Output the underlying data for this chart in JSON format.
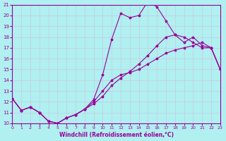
{
  "xlabel": "Windchill (Refroidissement éolien,°C)",
  "bg_color": "#b0f0f0",
  "grid_color": "#c8c8e0",
  "line_color": "#990099",
  "xlim": [
    0,
    23
  ],
  "ylim": [
    10,
    21
  ],
  "xticks": [
    0,
    1,
    2,
    3,
    4,
    5,
    6,
    7,
    8,
    9,
    10,
    11,
    12,
    13,
    14,
    15,
    16,
    17,
    18,
    19,
    20,
    21,
    22,
    23
  ],
  "yticks": [
    10,
    11,
    12,
    13,
    14,
    15,
    16,
    17,
    18,
    19,
    20,
    21
  ],
  "series1_x": [
    0,
    1,
    2,
    3,
    4,
    5,
    6,
    7,
    8,
    9,
    10,
    11,
    12,
    13,
    14,
    15,
    16,
    17,
    18,
    19,
    20,
    21,
    22,
    23
  ],
  "series1_y": [
    12.3,
    11.2,
    11.5,
    11.0,
    10.2,
    10.0,
    10.5,
    10.8,
    11.3,
    12.0,
    13.0,
    14.0,
    14.5,
    14.7,
    15.0,
    15.5,
    16.0,
    16.5,
    16.8,
    17.0,
    17.2,
    17.5,
    17.0,
    15.0
  ],
  "series2_x": [
    0,
    1,
    2,
    3,
    4,
    5,
    6,
    7,
    8,
    9,
    10,
    11,
    12,
    13,
    14,
    15,
    16,
    17,
    18,
    19,
    20,
    21,
    22,
    23
  ],
  "series2_y": [
    12.3,
    11.2,
    11.5,
    11.0,
    10.2,
    10.0,
    10.5,
    10.8,
    11.3,
    11.8,
    12.5,
    13.5,
    14.2,
    14.8,
    15.5,
    16.3,
    17.2,
    18.0,
    18.2,
    18.0,
    17.5,
    17.0,
    17.0,
    15.0
  ],
  "series3_x": [
    0,
    1,
    2,
    3,
    4,
    5,
    6,
    7,
    8,
    9,
    10,
    11,
    12,
    13,
    14,
    15,
    16,
    17,
    18,
    19,
    20,
    21,
    22,
    23
  ],
  "series3_y": [
    12.3,
    11.2,
    11.5,
    11.0,
    10.2,
    10.0,
    10.5,
    10.8,
    11.3,
    12.2,
    14.5,
    17.8,
    20.2,
    19.8,
    20.0,
    21.3,
    20.8,
    19.5,
    18.2,
    17.5,
    18.0,
    17.2,
    17.0,
    15.0
  ]
}
